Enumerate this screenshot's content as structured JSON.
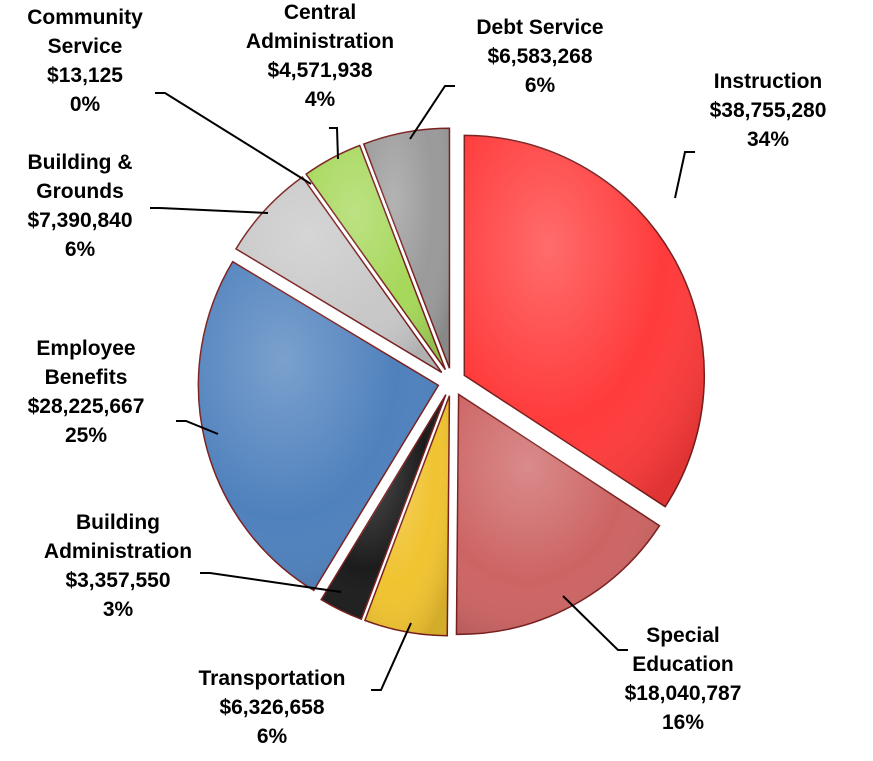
{
  "chart_data": {
    "type": "pie",
    "title": "",
    "slices": [
      {
        "name": "Instruction",
        "value": 38755280,
        "value_label": "$38,755,280",
        "pct_label": "34%",
        "color": "#ff3b3b"
      },
      {
        "name": "Special Education",
        "value": 18040787,
        "value_label": "$18,040,787",
        "pct_label": "16%",
        "color": "#cd6464"
      },
      {
        "name": "Transportation",
        "value": 6326658,
        "value_label": "$6,326,658",
        "pct_label": "6%",
        "color": "#f0c330"
      },
      {
        "name": "Building Administration",
        "value": 3357550,
        "value_label": "$3,357,550",
        "pct_label": "3%",
        "color": "#1c1c1c"
      },
      {
        "name": "Employee Benefits",
        "value": 28225667,
        "value_label": "$28,225,667",
        "pct_label": "25%",
        "color": "#4f81bd"
      },
      {
        "name": "Building & Grounds",
        "value": 7390840,
        "value_label": "$7,390,840",
        "pct_label": "6%",
        "color": "#c8c8c8"
      },
      {
        "name": "Community Service",
        "value": 13125,
        "value_label": "$13,125",
        "pct_label": "0%",
        "color": "#1c1c1c"
      },
      {
        "name": "Central Administration",
        "value": 4571938,
        "value_label": "$4,571,938",
        "pct_label": "4%",
        "color": "#a6d85a"
      },
      {
        "name": "Debt Service",
        "value": 6583268,
        "value_label": "$6,583,268",
        "pct_label": "6%",
        "color": "#9a9a9a"
      }
    ],
    "legend": "none",
    "data_labels": "outside with leader lines"
  }
}
